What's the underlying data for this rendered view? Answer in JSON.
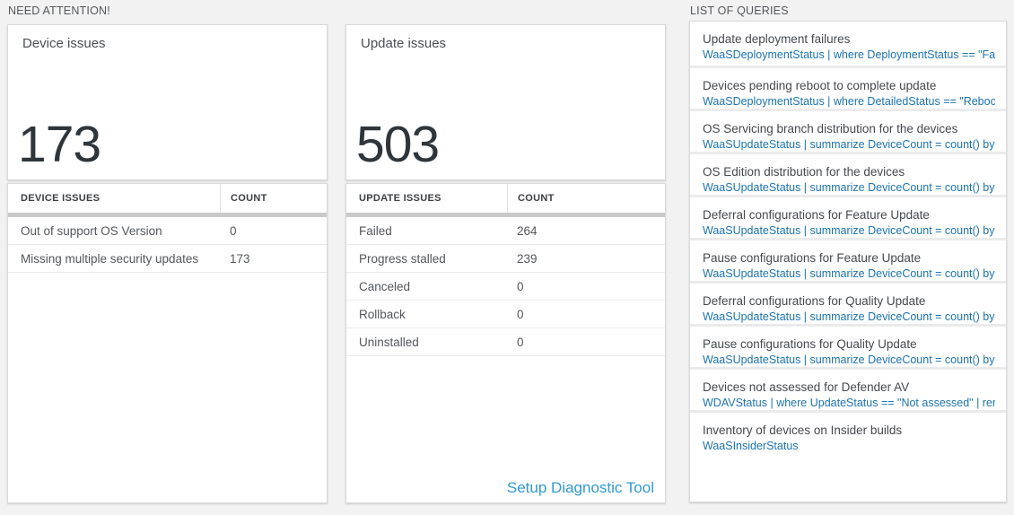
{
  "colors": {
    "page_background": "#f2f2f2",
    "query_link_blue": "#1c74b9",
    "action_link_blue": "#2e9ad8",
    "big_number_color": "#2f363b",
    "thick_bar_gray": "#c9c9c9"
  },
  "need_attention": {
    "section_title": "NEED ATTENTION!",
    "device_card": {
      "title": "Device issues",
      "count": "173"
    },
    "device_table": {
      "headers": [
        "DEVICE ISSUES",
        "COUNT"
      ],
      "rows": [
        {
          "label": "Out of support OS Version",
          "count": "0"
        },
        {
          "label": "Missing multiple security updates",
          "count": "173"
        }
      ]
    },
    "update_card": {
      "title": "Update issues",
      "count": "503"
    },
    "update_table": {
      "headers": [
        "UPDATE ISSUES",
        "COUNT"
      ],
      "rows": [
        {
          "label": "Failed",
          "count": "264"
        },
        {
          "label": "Progress stalled",
          "count": "239"
        },
        {
          "label": "Canceled",
          "count": "0"
        },
        {
          "label": "Rollback",
          "count": "0"
        },
        {
          "label": "Uninstalled",
          "count": "0"
        }
      ],
      "footer_link": "Setup Diagnostic Tool"
    }
  },
  "queries_panel": {
    "section_title": "LIST OF QUERIES",
    "items": [
      {
        "title": "Update deployment failures",
        "query": "WaaSDeploymentStatus | where DeploymentStatus == \"Failed\" |..."
      },
      {
        "title": "Devices pending reboot to complete update",
        "query": "WaaSDeploymentStatus | where DetailedStatus == \"Reboot pend..."
      },
      {
        "title": "OS Servicing branch distribution for the devices",
        "query": "WaaSUpdateStatus | summarize DeviceCount = count() by OSSer..."
      },
      {
        "title": "OS Edition distribution for the devices",
        "query": "WaaSUpdateStatus | summarize DeviceCount = count() by OSEdit..."
      },
      {
        "title": "Deferral configurations for Feature Update",
        "query": "WaaSUpdateStatus | summarize DeviceCount = count() by Featur..."
      },
      {
        "title": "Pause configurations for Feature Update",
        "query": "WaaSUpdateStatus | summarize DeviceCount = count() by Featur..."
      },
      {
        "title": "Deferral configurations for Quality Update",
        "query": "WaaSUpdateStatus | summarize DeviceCount = count() by Qualit..."
      },
      {
        "title": "Pause configurations for Quality Update",
        "query": "WaaSUpdateStatus | summarize DeviceCount = count() by Qualit..."
      },
      {
        "title": "Devices not assessed for Defender AV",
        "query": "WDAVStatus | where UpdateStatus == \"Not assessed\" | render ta..."
      },
      {
        "title": "Inventory of devices on Insider builds",
        "query": "WaaSInsiderStatus"
      }
    ]
  }
}
